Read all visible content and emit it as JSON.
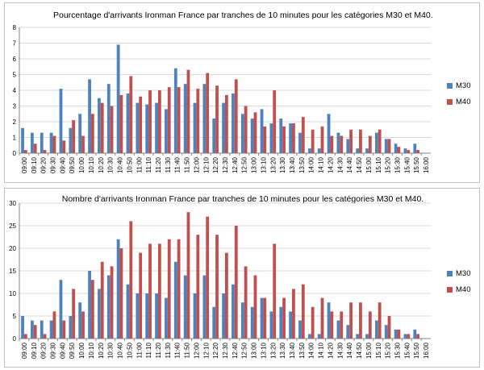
{
  "colors": {
    "M30": "#4f81bd",
    "M40": "#c0504d",
    "grid": "#d9d9d9",
    "axis": "#868686"
  },
  "chart_data": [
    {
      "type": "bar",
      "title": "Pourcentage d'arrivants Ironman France par tranches de 10 minutes pour les catégories M30 et M40.",
      "xlabel": "",
      "ylabel": "",
      "ylim": [
        0,
        8
      ],
      "yticks": [
        0,
        1,
        2,
        3,
        4,
        5,
        6,
        7,
        8
      ],
      "grid": true,
      "legend_position": "right",
      "categories": [
        "09:00",
        "09:10",
        "09:20",
        "09:30",
        "09:40",
        "09:50",
        "10:00",
        "10:10",
        "10:20",
        "10:30",
        "10:40",
        "10:50",
        "11:00",
        "11:10",
        "11:20",
        "11:30",
        "11:40",
        "11:50",
        "12:00",
        "12:10",
        "12:20",
        "12:30",
        "12:40",
        "12:50",
        "13:00",
        "13:10",
        "13:20",
        "13:30",
        "13:40",
        "13:50",
        "14:00",
        "14:10",
        "14:20",
        "14:30",
        "14:40",
        "14:50",
        "15:00",
        "15:10",
        "15:20",
        "15:30",
        "15:40",
        "15:50",
        "16:00"
      ],
      "series": [
        {
          "name": "M30",
          "values": [
            1.6,
            1.3,
            1.3,
            1.3,
            4.1,
            1.6,
            2.5,
            4.7,
            3.5,
            4.4,
            6.9,
            3.8,
            3.2,
            3.1,
            3.2,
            2.8,
            5.4,
            4.4,
            3.2,
            4.4,
            2.2,
            3.2,
            3.8,
            2.5,
            2.2,
            2.8,
            1.9,
            2.2,
            1.9,
            1.3,
            0.3,
            0.3,
            2.5,
            1.3,
            0.9,
            0.3,
            0.3,
            1.3,
            0.9,
            0.6,
            0.3,
            0.6,
            0
          ]
        },
        {
          "name": "M40",
          "values": [
            0.2,
            0.6,
            0.2,
            1.1,
            0.8,
            2.1,
            1.1,
            2.5,
            3.2,
            3.0,
            3.7,
            4.9,
            3.6,
            4.0,
            4.0,
            4.2,
            4.2,
            5.3,
            4.1,
            5.1,
            4.3,
            3.7,
            4.7,
            3.0,
            2.6,
            1.7,
            4.0,
            1.7,
            1.9,
            2.3,
            1.5,
            1.7,
            1.1,
            1.1,
            1.5,
            1.5,
            1.1,
            1.5,
            0.9,
            0.4,
            0.2,
            0.2,
            0
          ]
        }
      ]
    },
    {
      "type": "bar",
      "title": "Nombre d'arrivants Ironman France par tranches de 10 minutes pour les catégories M30 et M40.",
      "xlabel": "",
      "ylabel": "",
      "ylim": [
        0,
        30
      ],
      "yticks": [
        0,
        5,
        10,
        15,
        20,
        25,
        30
      ],
      "grid": true,
      "legend_position": "right",
      "categories": [
        "09:00",
        "09:10",
        "09:20",
        "09:30",
        "09:40",
        "09:50",
        "10:00",
        "10:10",
        "10:20",
        "10:30",
        "10:40",
        "10:50",
        "11:00",
        "11:10",
        "11:20",
        "11:30",
        "11:40",
        "11:50",
        "12:00",
        "12:10",
        "12:20",
        "12:30",
        "12:40",
        "12:50",
        "13:00",
        "13:10",
        "13:20",
        "13:30",
        "13:40",
        "13:50",
        "14:00",
        "14:10",
        "14:20",
        "14:30",
        "14:40",
        "14:50",
        "15:00",
        "15:10",
        "15:20",
        "15:30",
        "15:40",
        "15:50",
        "16:00"
      ],
      "series": [
        {
          "name": "M30",
          "values": [
            5,
            4,
            4,
            4,
            13,
            5,
            8,
            15,
            11,
            14,
            22,
            12,
            10,
            10,
            10,
            9,
            17,
            14,
            10,
            14,
            7,
            10,
            12,
            8,
            7,
            9,
            6,
            7,
            6,
            4,
            1,
            1,
            8,
            4,
            3,
            1,
            1,
            4,
            3,
            2,
            1,
            2,
            0
          ]
        },
        {
          "name": "M40",
          "values": [
            1,
            3,
            1,
            6,
            4,
            11,
            6,
            13,
            17,
            16,
            20,
            26,
            19,
            21,
            21,
            22,
            22,
            28,
            23,
            27,
            23,
            19,
            25,
            16,
            14,
            9,
            21,
            9,
            11,
            12,
            7,
            9,
            6,
            6,
            8,
            8,
            6,
            8,
            5,
            2,
            1,
            1,
            0
          ]
        }
      ]
    }
  ]
}
